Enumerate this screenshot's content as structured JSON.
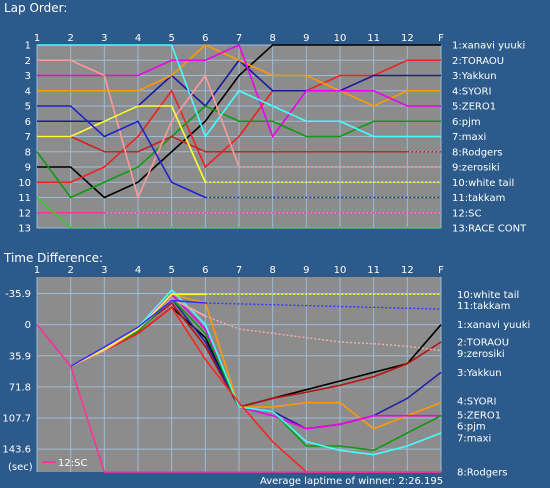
{
  "lap_order_title": "Lap Order:",
  "time_diff_title": "Time Difference:",
  "unit_label": "(sec)",
  "footer": "Average laptime of winner: 2:26.195",
  "chart_data": [
    {
      "type": "line",
      "title": "Lap Order:",
      "x": [
        "1",
        "2",
        "3",
        "4",
        "5",
        "6",
        "7",
        "8",
        "9",
        "10",
        "11",
        "12",
        "F"
      ],
      "y_ticks": [
        "1",
        "2",
        "3",
        "4",
        "5",
        "6",
        "7",
        "8",
        "9",
        "10",
        "11",
        "12",
        "13"
      ],
      "ylim": [
        1,
        13
      ],
      "y_inverted": true,
      "grid": true,
      "series": [
        {
          "name": "1:xanavi yuuki",
          "color": "#000000",
          "values": [
            9,
            9,
            11,
            10,
            8,
            6,
            3,
            1,
            1,
            1,
            1,
            1,
            1
          ],
          "dotted_from": null
        },
        {
          "name": "2:TORAOU",
          "color": "#ee2222",
          "values": [
            10,
            10,
            9,
            7,
            4,
            9,
            7,
            4,
            4,
            3,
            3,
            2,
            2
          ],
          "dotted_from": null
        },
        {
          "name": "3:Yakkun",
          "color": "#1a1aa0",
          "values": [
            6,
            6,
            6,
            5,
            3,
            5,
            2,
            4,
            4,
            4,
            3,
            3,
            3
          ],
          "dotted_from": null
        },
        {
          "name": "4:SYORI",
          "color": "#ff9900",
          "values": [
            4,
            4,
            4,
            4,
            3,
            1,
            2,
            3,
            3,
            4,
            5,
            4,
            4
          ],
          "dotted_from": null
        },
        {
          "name": "5:ZERO1",
          "color": "#ee00ee",
          "values": [
            3,
            3,
            3,
            3,
            2,
            2,
            1,
            7,
            4,
            4,
            4,
            5,
            5
          ],
          "dotted_from": null
        },
        {
          "name": "6:pjm",
          "color": "#119911",
          "values": [
            8,
            11,
            10,
            9,
            7,
            5,
            6,
            6,
            7,
            7,
            6,
            6,
            6
          ],
          "dotted_from": null
        },
        {
          "name": "7:maxi",
          "color": "#44ffff",
          "values": [
            1,
            1,
            1,
            1,
            1,
            7,
            4,
            5,
            6,
            6,
            7,
            7,
            7
          ],
          "dotted_from": null
        },
        {
          "name": "8:Rodgers",
          "color": "#cc2222",
          "values": [
            7,
            7,
            8,
            8,
            7,
            8,
            8,
            8,
            8,
            8,
            8,
            8,
            8
          ],
          "dotted_from": 11
        },
        {
          "name": "9:zerosiki",
          "color": "#ff9999",
          "values": [
            2,
            2,
            3,
            11,
            6,
            3,
            9,
            9,
            9,
            9,
            9,
            9,
            9
          ],
          "dotted_from": 6
        },
        {
          "name": "10:white tail",
          "color": "#ffff33",
          "values": [
            7,
            7,
            6,
            5,
            5,
            10,
            10,
            10,
            10,
            10,
            10,
            10,
            10
          ],
          "dotted_from": 5
        },
        {
          "name": "11:takkam",
          "color": "#2222cc",
          "values": [
            5,
            5,
            7,
            6,
            10,
            11,
            11,
            11,
            11,
            11,
            11,
            11,
            11
          ],
          "dotted_from": 5
        },
        {
          "name": "12:SC",
          "color": "#ff3399",
          "values": [
            12,
            12,
            12,
            12,
            12,
            12,
            12,
            12,
            12,
            12,
            12,
            12,
            12
          ],
          "dotted_from": 2
        },
        {
          "name": "13:RACE CONT",
          "color": "#33cc33",
          "values": [
            11,
            13,
            13,
            13,
            13,
            13,
            13,
            13,
            13,
            13,
            13,
            13,
            13
          ],
          "dotted_from": 1
        }
      ]
    },
    {
      "type": "line",
      "title": "Time Difference:",
      "x": [
        "1",
        "2",
        "3",
        "4",
        "5",
        "6",
        "7",
        "8",
        "9",
        "10",
        "11",
        "12",
        "F"
      ],
      "y_ticks": [
        "-35.9",
        "0",
        "35.9",
        "71.8",
        "107.7",
        "143.6"
      ],
      "ylim": [
        -55,
        170
      ],
      "y_inverted": true,
      "ylabel": "(sec)",
      "grid": true,
      "series": [
        {
          "name": "1:xanavi yuuki",
          "color": "#000000",
          "values": [
            0,
            48,
            30,
            10,
            -20,
            15,
            95,
            85,
            75,
            65,
            55,
            45,
            0
          ],
          "dotted_from": null
        },
        {
          "name": "2:TORAOU",
          "color": "#bb1111",
          "values": [
            0,
            48,
            28,
            5,
            -25,
            25,
            95,
            85,
            78,
            70,
            60,
            45,
            20
          ],
          "dotted_from": null
        },
        {
          "name": "3:Yakkun",
          "color": "#2222aa",
          "values": [
            0,
            48,
            28,
            5,
            -30,
            20,
            95,
            100,
            120,
            115,
            105,
            85,
            55
          ],
          "dotted_from": null
        },
        {
          "name": "4:SYORI",
          "color": "#ff9900",
          "values": [
            0,
            48,
            28,
            5,
            -35,
            -25,
            95,
            95,
            90,
            90,
            120,
            105,
            90
          ],
          "dotted_from": null
        },
        {
          "name": "5:ZERO1",
          "color": "#ee00ee",
          "values": [
            0,
            48,
            26,
            3,
            -35,
            5,
            95,
            105,
            120,
            115,
            105,
            105,
            105
          ],
          "dotted_from": null
        },
        {
          "name": "6:pjm",
          "color": "#119911",
          "values": [
            0,
            48,
            30,
            8,
            -30,
            10,
            95,
            100,
            140,
            140,
            145,
            125,
            105
          ],
          "dotted_from": null
        },
        {
          "name": "7:maxi",
          "color": "#44ffff",
          "values": [
            0,
            48,
            28,
            3,
            -40,
            0,
            95,
            100,
            135,
            145,
            150,
            140,
            125
          ],
          "dotted_from": null
        },
        {
          "name": "8:Rodgers",
          "color": "#ff2222",
          "values": [
            0,
            48,
            30,
            10,
            -20,
            40,
            90,
            135,
            170,
            170,
            170,
            170,
            170
          ],
          "dotted_from": null
        },
        {
          "name": "9:zerosiki",
          "color": "#ffaaaa",
          "values": [
            0,
            48,
            30,
            5,
            -30,
            -10,
            5,
            10,
            15,
            20,
            22,
            25,
            30
          ],
          "dotted_from": 5
        },
        {
          "name": "10:white tail",
          "color": "#ffff33",
          "values": [
            0,
            48,
            28,
            5,
            -35,
            -35,
            -35,
            -35,
            -35,
            -35,
            -35,
            -35,
            -35
          ],
          "dotted_from": 5
        },
        {
          "name": "11:takkam",
          "color": "#3333ff",
          "values": [
            0,
            48,
            26,
            3,
            -28,
            -25,
            -24,
            -23,
            -22,
            -21,
            -20,
            -19,
            -18
          ],
          "dotted_from": 5
        },
        {
          "name": "12:SC",
          "color": "#ff3399",
          "values": [
            0,
            48,
            175,
            175,
            175,
            175,
            175,
            175,
            175,
            175,
            175,
            175,
            175
          ],
          "dotted_from": null
        }
      ]
    }
  ],
  "lap_labels": [
    {
      "text": "1:xanavi yuuki",
      "y": 1
    },
    {
      "text": "2:TORAOU",
      "y": 2
    },
    {
      "text": "3:Yakkun",
      "y": 3
    },
    {
      "text": "4:SYORI",
      "y": 4
    },
    {
      "text": "5:ZERO1",
      "y": 5
    },
    {
      "text": "6:pjm",
      "y": 6
    },
    {
      "text": "7:maxi",
      "y": 7
    },
    {
      "text": "8:Rodgers",
      "y": 8
    },
    {
      "text": "9:zerosiki",
      "y": 9
    },
    {
      "text": "10:white tail",
      "y": 10
    },
    {
      "text": "11:takkam",
      "y": 11
    },
    {
      "text": "12:SC",
      "y": 12
    },
    {
      "text": "13:RACE CONT",
      "y": 13
    }
  ],
  "time_labels": [
    {
      "text": "10:white tail",
      "y": -35
    },
    {
      "text": "11:takkam",
      "y": -22
    },
    {
      "text": "1:xanavi yuuki",
      "y": 0
    },
    {
      "text": "2:TORAOU",
      "y": 20
    },
    {
      "text": "9:zerosiki",
      "y": 33
    },
    {
      "text": "3:Yakkun",
      "y": 55
    },
    {
      "text": "4:SYORI",
      "y": 88
    },
    {
      "text": "5:ZERO1",
      "y": 104
    },
    {
      "text": "6:pjm",
      "y": 117
    },
    {
      "text": "7:maxi",
      "y": 131
    },
    {
      "text": "8:Rodgers",
      "y": 170
    }
  ],
  "inline_label": {
    "text": "12:SC",
    "color": "#ff3399"
  }
}
